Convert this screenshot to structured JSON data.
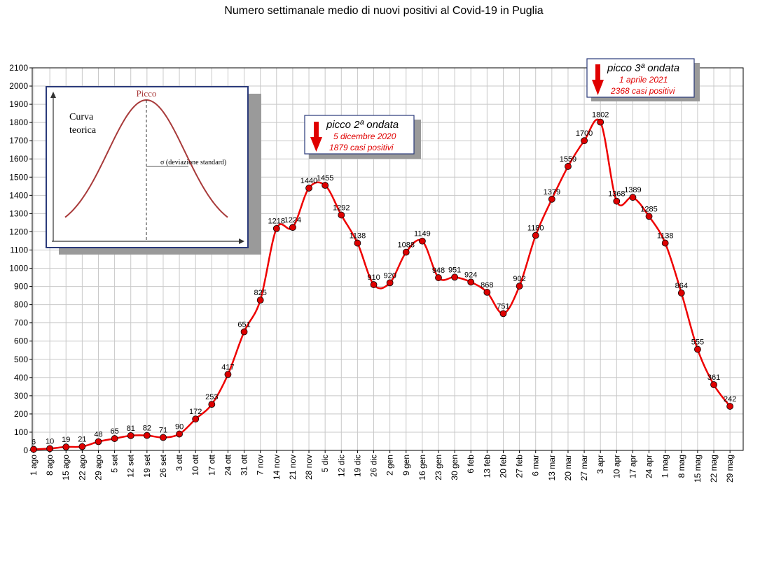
{
  "chart_data": {
    "type": "line",
    "title": "Numero settimanale medio di nuovi positivi al Covid-19 in Puglia",
    "xlabel": "",
    "ylabel": "",
    "ylim": [
      0,
      2100
    ],
    "yticks": [
      0,
      100,
      200,
      300,
      400,
      500,
      600,
      700,
      800,
      900,
      1000,
      1100,
      1200,
      1300,
      1400,
      1500,
      1600,
      1700,
      1800,
      1900,
      2000,
      2100
    ],
    "grid": true,
    "categories": [
      "1 ago",
      "8 ago",
      "15 ago",
      "22 ago",
      "29 ago",
      "5 set",
      "12 set",
      "19 set",
      "26 set",
      "3 ott",
      "10 ott",
      "17 ott",
      "24 ott",
      "31 ott",
      "7 nov",
      "14 nov",
      "21 nov",
      "28 nov",
      "5 dic",
      "12 dic",
      "19 dic",
      "26 dic",
      "2 gen",
      "9 gen",
      "16 gen",
      "23 gen",
      "30 gen",
      "6 feb",
      "13 feb",
      "20 feb",
      "27 feb",
      "6 mar",
      "13 mar",
      "20 mar",
      "27 mar",
      "3 apr",
      "10 apr",
      "17 apr",
      "24 apr",
      "1 mag",
      "8 mag",
      "15 mag",
      "22 mag",
      "29 mag"
    ],
    "series": [
      {
        "color": "#ee0000",
        "marker_color": "#dd0000",
        "values": [
          6,
          10,
          19,
          21,
          48,
          65,
          81,
          82,
          71,
          90,
          172,
          253,
          417,
          651,
          825,
          1218,
          1224,
          1440,
          1455,
          1292,
          1138,
          910,
          920,
          1088,
          1149,
          948,
          951,
          924,
          868,
          751,
          902,
          1180,
          1379,
          1559,
          1700,
          1802,
          1368,
          1389,
          1285,
          1138,
          864,
          555,
          361,
          242
        ],
        "labels": [
          "6",
          "10",
          "19",
          "21",
          "48",
          "65",
          "81",
          "82",
          "71",
          "90",
          "172",
          "253",
          "417",
          "651",
          "825",
          "1218",
          "1224",
          "1440",
          "1455",
          "1292",
          "1138",
          "910",
          "920",
          "1088",
          "1149",
          "948",
          "951",
          "924",
          "868",
          "751",
          "902",
          "1180",
          "1379",
          "1559",
          "1700",
          "1802",
          "1368",
          "1389",
          "1285",
          "1138",
          "864",
          "555",
          "361",
          "242"
        ]
      }
    ],
    "annotations": [
      {
        "id": "second-wave",
        "title": "picco 2ª ondata",
        "line1": "5 dicembre 2020",
        "line2": "1879 casi positivi"
      },
      {
        "id": "third-wave",
        "title": "picco 3ª ondata",
        "line1": "1 aprile 2021",
        "line2": "2368 casi positivi"
      }
    ],
    "inset": {
      "peak_label": "Picco",
      "curve_label_1": "Curva",
      "curve_label_2": "teorica",
      "sigma_label": "σ  (deviazione standard)"
    }
  }
}
